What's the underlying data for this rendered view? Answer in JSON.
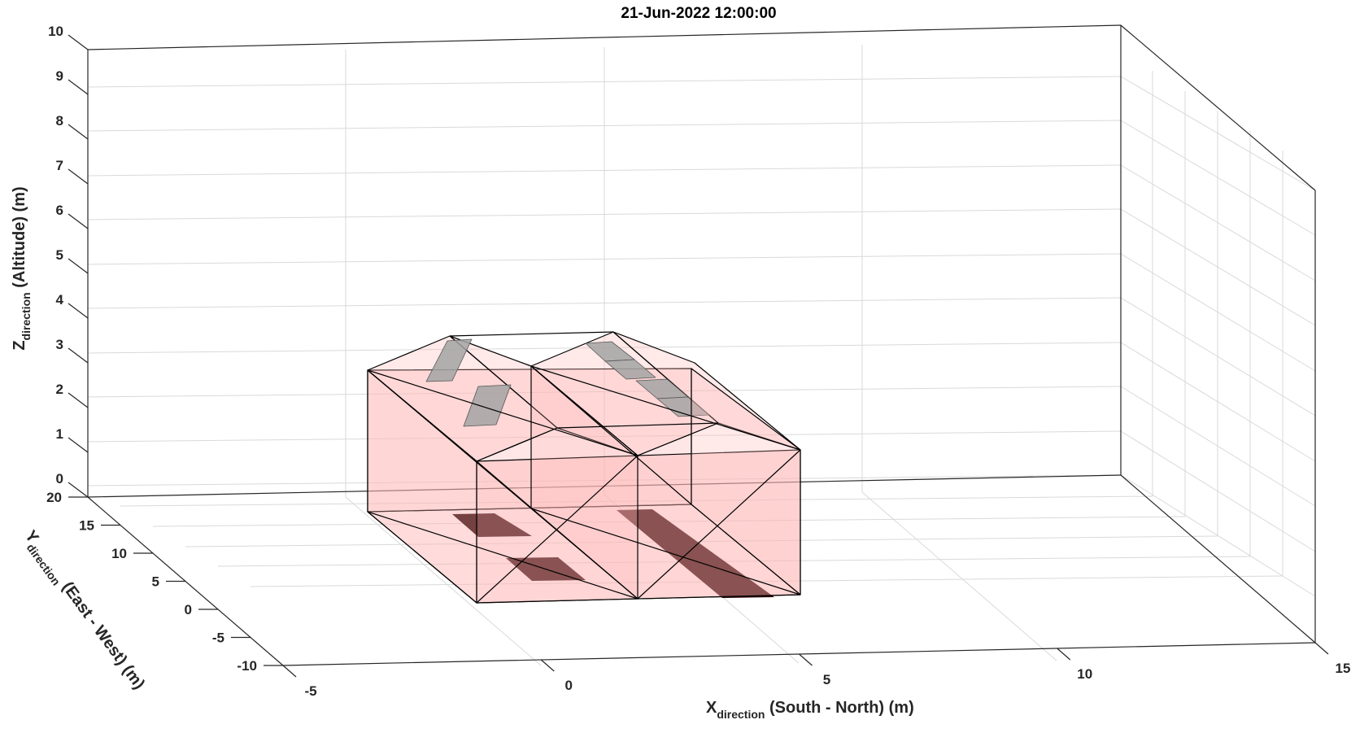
{
  "title": "21-Jun-2022 12:00:00",
  "axes": {
    "x": {
      "label_main": "X",
      "label_sub": "direction",
      "label_rest": " (South - North) (m)",
      "ticks": [
        "-5",
        "0",
        "5",
        "10",
        "15"
      ]
    },
    "y": {
      "label_main": "Y",
      "label_sub": "direction",
      "label_rest": " (East - West) (m)",
      "ticks": [
        "-10",
        "-5",
        "0",
        "5",
        "10",
        "15",
        "20"
      ]
    },
    "z": {
      "label_main": "Z",
      "label_sub": "direction",
      "label_rest": " (Altitude) (m)",
      "ticks": [
        "0",
        "1",
        "2",
        "3",
        "4",
        "5",
        "6",
        "7",
        "8",
        "9",
        "10"
      ]
    }
  },
  "colors": {
    "building_fill": "#ffb6b6",
    "building_edge": "#000000",
    "panel_fill": "#9a9a9a",
    "shadow_fill": "#2a0000",
    "grid": "#d9d9d9",
    "box": "#262626"
  }
}
